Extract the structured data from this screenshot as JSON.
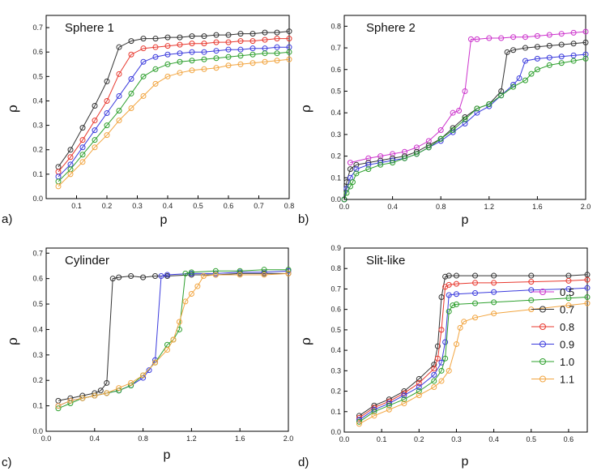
{
  "colors": {
    "0.5": "#cc33cc",
    "0.7": "#333333",
    "0.8": "#e8392f",
    "0.9": "#3b3bdd",
    "1.0": "#2ea02e",
    "1.1": "#f2a540"
  },
  "legend": {
    "entries": [
      "0.5",
      "0.7",
      "0.8",
      "0.9",
      "1.0",
      "1.1"
    ]
  },
  "chart_data": [
    {
      "type": "line",
      "panel_label": "a)",
      "title": "Sphere 1",
      "xlabel": "p",
      "ylabel": "ρ",
      "xlim": [
        0,
        0.8
      ],
      "ylim": [
        0,
        0.75
      ],
      "xticks": [
        "0.1",
        "0.2",
        "0.3",
        "0.4",
        "0.5",
        "0.6",
        "0.7",
        "0.8"
      ],
      "yticks": [
        "0.0",
        "0.1",
        "0.2",
        "0.3",
        "0.4",
        "0.5",
        "0.6",
        "0.7"
      ],
      "series": [
        {
          "name": "0.7",
          "x": [
            0.04,
            0.08,
            0.12,
            0.16,
            0.2,
            0.24,
            0.28,
            0.32,
            0.36,
            0.4,
            0.44,
            0.48,
            0.52,
            0.56,
            0.6,
            0.64,
            0.68,
            0.72,
            0.76,
            0.8
          ],
          "y": [
            0.13,
            0.2,
            0.29,
            0.38,
            0.48,
            0.62,
            0.645,
            0.655,
            0.655,
            0.66,
            0.66,
            0.665,
            0.665,
            0.67,
            0.67,
            0.675,
            0.675,
            0.68,
            0.68,
            0.685
          ]
        },
        {
          "name": "0.8",
          "x": [
            0.04,
            0.08,
            0.12,
            0.16,
            0.2,
            0.24,
            0.28,
            0.32,
            0.36,
            0.4,
            0.44,
            0.48,
            0.52,
            0.56,
            0.6,
            0.64,
            0.68,
            0.72,
            0.76,
            0.8
          ],
          "y": [
            0.11,
            0.17,
            0.24,
            0.32,
            0.4,
            0.51,
            0.59,
            0.615,
            0.62,
            0.625,
            0.63,
            0.635,
            0.635,
            0.64,
            0.64,
            0.645,
            0.645,
            0.65,
            0.655,
            0.655
          ]
        },
        {
          "name": "0.9",
          "x": [
            0.04,
            0.08,
            0.12,
            0.16,
            0.2,
            0.24,
            0.28,
            0.32,
            0.36,
            0.4,
            0.44,
            0.48,
            0.52,
            0.56,
            0.6,
            0.64,
            0.68,
            0.72,
            0.76,
            0.8
          ],
          "y": [
            0.09,
            0.14,
            0.21,
            0.28,
            0.35,
            0.42,
            0.49,
            0.56,
            0.58,
            0.59,
            0.595,
            0.6,
            0.6,
            0.605,
            0.61,
            0.61,
            0.615,
            0.615,
            0.62,
            0.62
          ]
        },
        {
          "name": "1.0",
          "x": [
            0.04,
            0.08,
            0.12,
            0.16,
            0.2,
            0.24,
            0.28,
            0.32,
            0.36,
            0.4,
            0.44,
            0.48,
            0.52,
            0.56,
            0.6,
            0.64,
            0.68,
            0.72,
            0.76,
            0.8
          ],
          "y": [
            0.07,
            0.12,
            0.18,
            0.24,
            0.3,
            0.36,
            0.43,
            0.5,
            0.53,
            0.55,
            0.56,
            0.565,
            0.57,
            0.575,
            0.58,
            0.585,
            0.59,
            0.595,
            0.595,
            0.6
          ]
        },
        {
          "name": "1.1",
          "x": [
            0.04,
            0.08,
            0.12,
            0.16,
            0.2,
            0.24,
            0.28,
            0.32,
            0.36,
            0.4,
            0.44,
            0.48,
            0.52,
            0.56,
            0.6,
            0.64,
            0.68,
            0.72,
            0.76,
            0.8
          ],
          "y": [
            0.05,
            0.1,
            0.15,
            0.21,
            0.26,
            0.32,
            0.37,
            0.42,
            0.47,
            0.5,
            0.515,
            0.525,
            0.53,
            0.535,
            0.545,
            0.55,
            0.555,
            0.56,
            0.565,
            0.57
          ]
        }
      ]
    },
    {
      "type": "line",
      "panel_label": "b)",
      "title": "Sphere 2",
      "xlabel": "p",
      "ylabel": "ρ",
      "xlim": [
        0,
        2.0
      ],
      "ylim": [
        0,
        0.85
      ],
      "xticks": [
        "0.0",
        "0.4",
        "0.8",
        "1.2",
        "1.6",
        "2.0"
      ],
      "yticks": [
        "0.0",
        "0.1",
        "0.2",
        "0.3",
        "0.4",
        "0.5",
        "0.6",
        "0.7",
        "0.8"
      ],
      "series": [
        {
          "name": "0.5",
          "x": [
            0.05,
            0.2,
            0.3,
            0.4,
            0.5,
            0.6,
            0.7,
            0.8,
            0.9,
            0.95,
            1.0,
            1.05,
            1.1,
            1.2,
            1.3,
            1.4,
            1.5,
            1.6,
            1.7,
            1.8,
            1.9,
            2.0
          ],
          "y": [
            0.17,
            0.19,
            0.2,
            0.21,
            0.22,
            0.24,
            0.27,
            0.32,
            0.4,
            0.41,
            0.5,
            0.74,
            0.74,
            0.745,
            0.745,
            0.75,
            0.75,
            0.755,
            0.76,
            0.765,
            0.77,
            0.775
          ]
        },
        {
          "name": "0.7",
          "x": [
            0.0,
            0.02,
            0.05,
            0.1,
            0.2,
            0.3,
            0.4,
            0.5,
            0.6,
            0.7,
            0.8,
            0.9,
            1.0,
            1.1,
            1.2,
            1.3,
            1.35,
            1.4,
            1.5,
            1.6,
            1.7,
            1.8,
            1.9,
            2.0
          ],
          "y": [
            0.0,
            0.08,
            0.14,
            0.16,
            0.17,
            0.18,
            0.19,
            0.2,
            0.22,
            0.25,
            0.28,
            0.33,
            0.38,
            0.42,
            0.44,
            0.5,
            0.68,
            0.69,
            0.7,
            0.705,
            0.71,
            0.715,
            0.72,
            0.725
          ]
        },
        {
          "name": "0.9",
          "x": [
            0.0,
            0.02,
            0.05,
            0.1,
            0.2,
            0.3,
            0.4,
            0.5,
            0.6,
            0.7,
            0.8,
            0.9,
            1.0,
            1.1,
            1.2,
            1.3,
            1.4,
            1.45,
            1.5,
            1.6,
            1.7,
            1.8,
            1.9,
            2.0
          ],
          "y": [
            0.0,
            0.05,
            0.1,
            0.14,
            0.16,
            0.17,
            0.18,
            0.19,
            0.21,
            0.24,
            0.27,
            0.31,
            0.35,
            0.4,
            0.43,
            0.48,
            0.53,
            0.56,
            0.64,
            0.65,
            0.655,
            0.66,
            0.665,
            0.67
          ]
        },
        {
          "name": "1.0",
          "x": [
            0.0,
            0.02,
            0.05,
            0.07,
            0.1,
            0.2,
            0.3,
            0.4,
            0.5,
            0.6,
            0.7,
            0.8,
            0.9,
            1.0,
            1.1,
            1.2,
            1.3,
            1.4,
            1.5,
            1.55,
            1.6,
            1.7,
            1.8,
            1.9,
            2.0
          ],
          "y": [
            0.0,
            0.03,
            0.06,
            0.08,
            0.12,
            0.14,
            0.16,
            0.17,
            0.19,
            0.21,
            0.24,
            0.28,
            0.32,
            0.37,
            0.42,
            0.44,
            0.48,
            0.52,
            0.55,
            0.58,
            0.6,
            0.62,
            0.63,
            0.64,
            0.65
          ]
        }
      ]
    },
    {
      "type": "line",
      "panel_label": "c)",
      "title": "Cylinder",
      "xlabel": "p",
      "ylabel": "ρ",
      "xlim": [
        0,
        2.0
      ],
      "ylim": [
        0,
        0.72
      ],
      "xticks": [
        "0.0",
        "0.4",
        "0.8",
        "1.2",
        "1.6",
        "2.0"
      ],
      "yticks": [
        "0.0",
        "0.1",
        "0.2",
        "0.3",
        "0.4",
        "0.5",
        "0.6",
        "0.7"
      ],
      "series": [
        {
          "name": "0.7",
          "x": [
            0.1,
            0.2,
            0.3,
            0.4,
            0.45,
            0.5,
            0.55,
            0.6,
            0.7,
            0.8,
            0.9,
            1.0,
            1.2,
            1.4,
            1.6,
            1.8,
            2.0
          ],
          "y": [
            0.12,
            0.13,
            0.14,
            0.15,
            0.16,
            0.19,
            0.6,
            0.605,
            0.61,
            0.605,
            0.61,
            0.61,
            0.615,
            0.615,
            0.62,
            0.62,
            0.62
          ]
        },
        {
          "name": "0.9",
          "x": [
            0.1,
            0.2,
            0.3,
            0.4,
            0.5,
            0.6,
            0.7,
            0.8,
            0.85,
            0.9,
            0.95,
            1.0,
            1.2,
            1.4,
            1.6,
            1.8,
            2.0
          ],
          "y": [
            0.1,
            0.12,
            0.13,
            0.14,
            0.15,
            0.16,
            0.18,
            0.21,
            0.24,
            0.28,
            0.61,
            0.615,
            0.62,
            0.62,
            0.625,
            0.625,
            0.63
          ]
        },
        {
          "name": "1.0",
          "x": [
            0.1,
            0.2,
            0.3,
            0.4,
            0.5,
            0.6,
            0.7,
            0.8,
            0.9,
            1.0,
            1.05,
            1.1,
            1.15,
            1.2,
            1.4,
            1.6,
            1.8,
            2.0
          ],
          "y": [
            0.09,
            0.11,
            0.13,
            0.14,
            0.15,
            0.16,
            0.18,
            0.22,
            0.27,
            0.34,
            0.36,
            0.4,
            0.62,
            0.625,
            0.63,
            0.63,
            0.635,
            0.635
          ]
        },
        {
          "name": "1.1",
          "x": [
            0.1,
            0.2,
            0.3,
            0.4,
            0.5,
            0.6,
            0.7,
            0.8,
            0.9,
            1.0,
            1.05,
            1.1,
            1.15,
            1.2,
            1.25,
            1.3,
            1.4,
            1.6,
            1.8,
            2.0
          ],
          "y": [
            0.1,
            0.12,
            0.13,
            0.14,
            0.15,
            0.17,
            0.19,
            0.22,
            0.27,
            0.32,
            0.36,
            0.43,
            0.51,
            0.54,
            0.57,
            0.61,
            0.615,
            0.615,
            0.615,
            0.62
          ]
        }
      ]
    },
    {
      "type": "line",
      "panel_label": "d)",
      "title": "Slit-like",
      "xlabel": "p",
      "ylabel": "ρ",
      "xlim": [
        0,
        0.65
      ],
      "ylim": [
        0,
        0.9
      ],
      "xticks": [
        "0.0",
        "0.1",
        "0.2",
        "0.3",
        "0.4",
        "0.5",
        "0.6"
      ],
      "yticks": [
        "0.0",
        "0.1",
        "0.2",
        "0.3",
        "0.4",
        "0.5",
        "0.6",
        "0.7",
        "0.8",
        "0.9"
      ],
      "series": [
        {
          "name": "0.7",
          "x": [
            0.04,
            0.08,
            0.12,
            0.16,
            0.2,
            0.24,
            0.25,
            0.26,
            0.27,
            0.28,
            0.3,
            0.35,
            0.4,
            0.5,
            0.6,
            0.65
          ],
          "y": [
            0.08,
            0.13,
            0.16,
            0.2,
            0.26,
            0.33,
            0.42,
            0.66,
            0.76,
            0.765,
            0.765,
            0.765,
            0.765,
            0.765,
            0.765,
            0.77
          ]
        },
        {
          "name": "0.8",
          "x": [
            0.04,
            0.08,
            0.12,
            0.16,
            0.2,
            0.24,
            0.25,
            0.26,
            0.27,
            0.28,
            0.3,
            0.35,
            0.4,
            0.5,
            0.6,
            0.65
          ],
          "y": [
            0.07,
            0.12,
            0.15,
            0.19,
            0.24,
            0.31,
            0.36,
            0.5,
            0.71,
            0.72,
            0.725,
            0.73,
            0.73,
            0.735,
            0.74,
            0.745
          ]
        },
        {
          "name": "0.9",
          "x": [
            0.04,
            0.08,
            0.12,
            0.16,
            0.2,
            0.24,
            0.26,
            0.27,
            0.28,
            0.3,
            0.35,
            0.4,
            0.5,
            0.6,
            0.65
          ],
          "y": [
            0.06,
            0.11,
            0.14,
            0.18,
            0.22,
            0.28,
            0.34,
            0.44,
            0.67,
            0.675,
            0.68,
            0.685,
            0.695,
            0.7,
            0.705
          ]
        },
        {
          "name": "1.0",
          "x": [
            0.04,
            0.08,
            0.12,
            0.16,
            0.2,
            0.24,
            0.26,
            0.27,
            0.28,
            0.29,
            0.3,
            0.35,
            0.4,
            0.5,
            0.6,
            0.65
          ],
          "y": [
            0.05,
            0.1,
            0.13,
            0.16,
            0.2,
            0.25,
            0.3,
            0.36,
            0.59,
            0.62,
            0.625,
            0.63,
            0.635,
            0.645,
            0.655,
            0.66
          ]
        },
        {
          "name": "1.1",
          "x": [
            0.04,
            0.08,
            0.12,
            0.16,
            0.2,
            0.24,
            0.26,
            0.28,
            0.3,
            0.31,
            0.32,
            0.35,
            0.4,
            0.5,
            0.6,
            0.65
          ],
          "y": [
            0.04,
            0.08,
            0.11,
            0.14,
            0.18,
            0.22,
            0.25,
            0.3,
            0.43,
            0.51,
            0.54,
            0.56,
            0.58,
            0.6,
            0.62,
            0.63
          ]
        }
      ]
    }
  ]
}
